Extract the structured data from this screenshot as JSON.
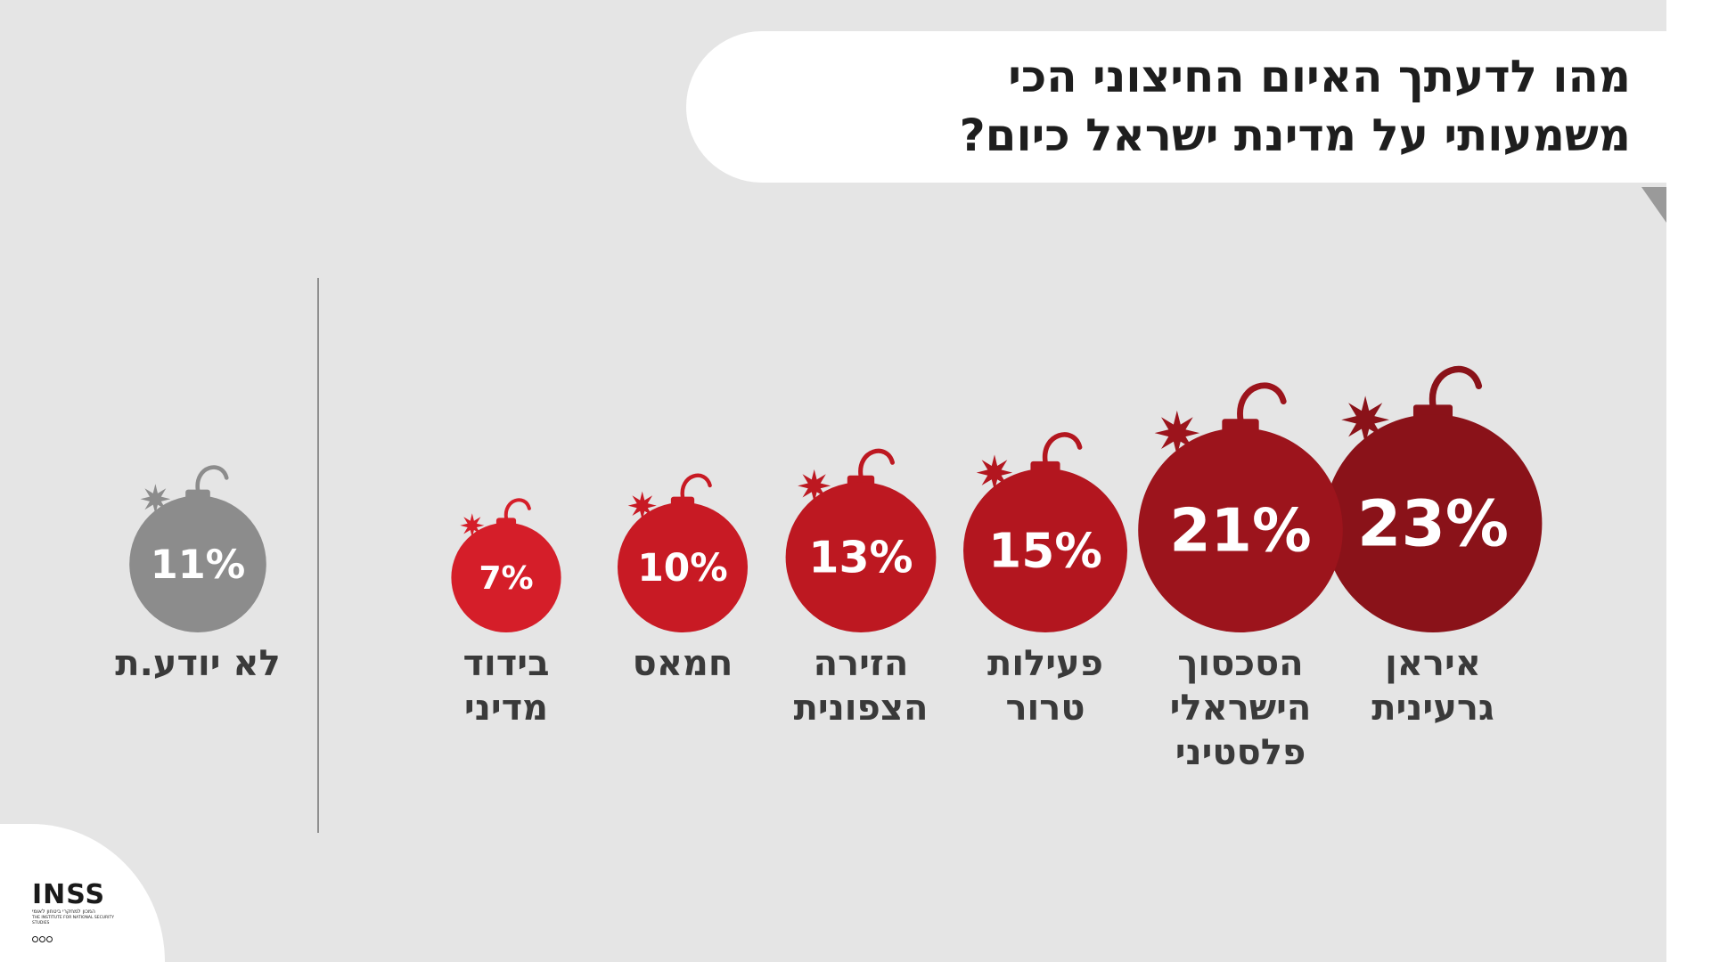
{
  "title": {
    "line1": "מהו לדעתך האיום החיצוני הכי",
    "line2": "משמעותי על מדינת ישראל כיום?"
  },
  "chart_data": {
    "type": "bubble",
    "unit": "%",
    "items": [
      {
        "label_lines": [
          "איראן",
          "גרעינית"
        ],
        "value": 23,
        "color": "#8a1219"
      },
      {
        "label_lines": [
          "הסכסוך",
          "הישראלי",
          "פלסטיני"
        ],
        "value": 21,
        "color": "#9c141c"
      },
      {
        "label_lines": [
          "פעילות",
          "טרור"
        ],
        "value": 15,
        "color": "#b3161f"
      },
      {
        "label_lines": [
          "הזירה",
          "הצפונית"
        ],
        "value": 13,
        "color": "#bd1821"
      },
      {
        "label_lines": [
          "חמאס"
        ],
        "value": 10,
        "color": "#c81a24"
      },
      {
        "label_lines": [
          "בידוד",
          "מדיני"
        ],
        "value": 7,
        "color": "#d51e29"
      }
    ],
    "separate_item": {
      "label_lines": [
        "לא יודע.ת"
      ],
      "value": 11,
      "color": "#8c8c8c"
    }
  },
  "logo": {
    "wordmark": "INSS",
    "hebrew_name": "המכון למחקרי ביטחון לאומי",
    "english_name": "THE INSTITUTE FOR NATIONAL SECURITY STUDIES"
  }
}
